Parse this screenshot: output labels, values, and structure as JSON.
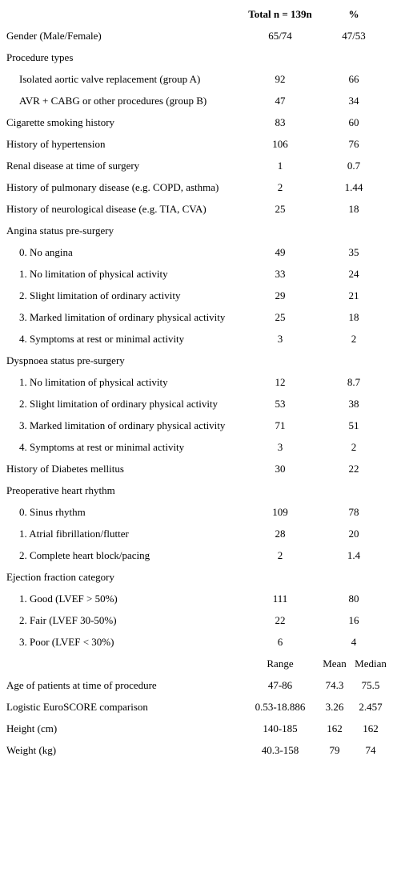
{
  "header": {
    "total": "Total n = 139n",
    "pct": "%"
  },
  "rows": [
    {
      "label": "Gender (Male/Female)",
      "n": "65/74",
      "pct": "47/53",
      "indent": false
    },
    {
      "label": "Procedure types",
      "n": "",
      "pct": "",
      "indent": false
    },
    {
      "label": "Isolated aortic valve replacement (group A)",
      "n": "92",
      "pct": "66",
      "indent": true
    },
    {
      "label": "AVR + CABG or other procedures (group B)",
      "n": "47",
      "pct": "34",
      "indent": true
    },
    {
      "label": "Cigarette smoking history",
      "n": "83",
      "pct": "60",
      "indent": false
    },
    {
      "label": "History of hypertension",
      "n": "106",
      "pct": "76",
      "indent": false
    },
    {
      "label": "Renal disease at time of surgery",
      "n": "1",
      "pct": "0.7",
      "indent": false
    },
    {
      "label": "History of pulmonary disease (e.g. COPD, asthma)",
      "n": "2",
      "pct": "1.44",
      "indent": false
    },
    {
      "label": "History of neurological disease (e.g. TIA, CVA)",
      "n": "25",
      "pct": "18",
      "indent": false
    },
    {
      "label": "Angina status pre-surgery",
      "n": "",
      "pct": "",
      "indent": false
    },
    {
      "label": "0. No angina",
      "n": "49",
      "pct": "35",
      "indent": true
    },
    {
      "label": "1. No limitation of physical activity",
      "n": "33",
      "pct": "24",
      "indent": true
    },
    {
      "label": "2. Slight limitation of ordinary activity",
      "n": "29",
      "pct": "21",
      "indent": true
    },
    {
      "label": "3. Marked limitation of ordinary physical activity",
      "n": "25",
      "pct": "18",
      "indent": true
    },
    {
      "label": "4. Symptoms at rest or minimal activity",
      "n": "3",
      "pct": "2",
      "indent": true
    },
    {
      "label": "Dyspnoea status pre-surgery",
      "n": "",
      "pct": "",
      "indent": false
    },
    {
      "label": "1. No limitation of physical activity",
      "n": "12",
      "pct": "8.7",
      "indent": true
    },
    {
      "label": "2. Slight limitation of ordinary physical activity",
      "n": "53",
      "pct": "38",
      "indent": true
    },
    {
      "label": "3. Marked limitation of ordinary physical activity",
      "n": "71",
      "pct": "51",
      "indent": true
    },
    {
      "label": "4. Symptoms at rest or minimal activity",
      "n": "3",
      "pct": "2",
      "indent": true
    },
    {
      "label": "History of Diabetes mellitus",
      "n": "30",
      "pct": "22",
      "indent": false
    },
    {
      "label": "Preoperative heart rhythm",
      "n": "",
      "pct": "",
      "indent": false
    },
    {
      "label": "0. Sinus rhythm",
      "n": "109",
      "pct": "78",
      "indent": true
    },
    {
      "label": "1. Atrial fibrillation/flutter",
      "n": "28",
      "pct": "20",
      "indent": true
    },
    {
      "label": "2. Complete heart block/pacing",
      "n": "2",
      "pct": "1.4",
      "indent": true
    },
    {
      "label": "Ejection fraction category",
      "n": "",
      "pct": "",
      "indent": false
    },
    {
      "label": "1. Good (LVEF > 50%)",
      "n": "111",
      "pct": "80",
      "indent": true
    },
    {
      "label": "2. Fair (LVEF 30-50%)",
      "n": "22",
      "pct": "16",
      "indent": true
    },
    {
      "label": "3. Poor (LVEF < 30%)",
      "n": "6",
      "pct": "4",
      "indent": true
    }
  ],
  "stats_header": {
    "range": "Range",
    "mean": "Mean",
    "median": "Median"
  },
  "stats_rows": [
    {
      "label": "Age of patients at time of procedure",
      "range": "47-86",
      "mean": "74.3",
      "median": "75.5"
    },
    {
      "label": "Logistic EuroSCORE comparison",
      "range": "0.53-18.886",
      "mean": "3.26",
      "median": "2.457"
    },
    {
      "label": "Height (cm)",
      "range": "140-185",
      "mean": "162",
      "median": "162"
    },
    {
      "label": "Weight (kg)",
      "range": "40.3-158",
      "mean": "79",
      "median": "74"
    }
  ]
}
